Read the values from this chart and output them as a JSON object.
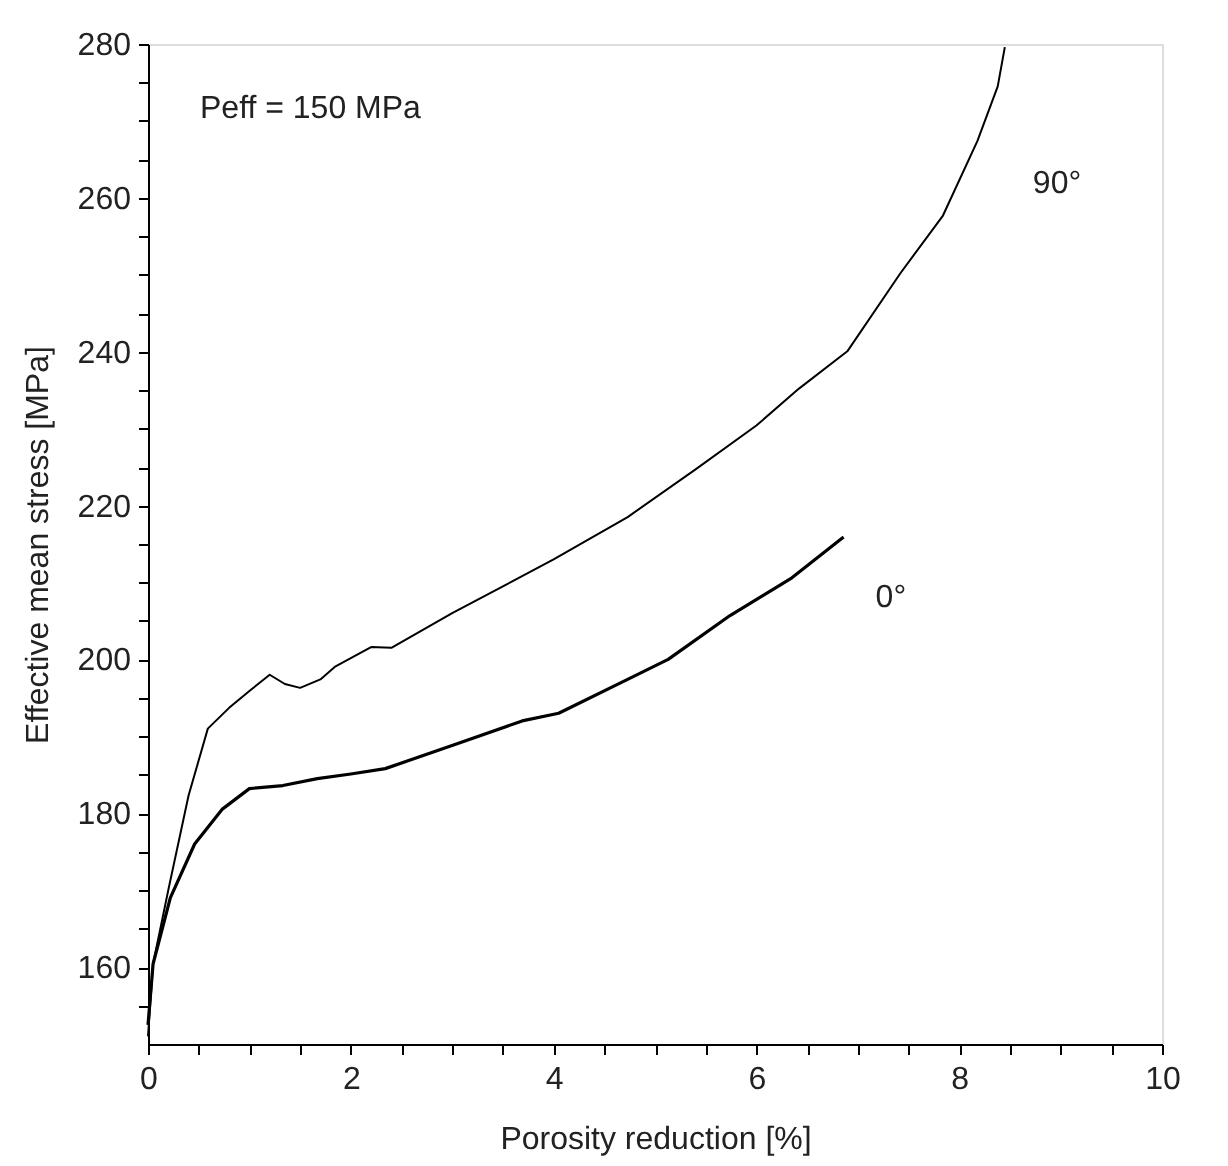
{
  "chart_data": {
    "type": "line",
    "xlabel": "Porosity reduction [%]",
    "ylabel": "Effective mean stress [MPa]",
    "annotations": [
      "Peff = 150 MPa"
    ],
    "xlim": [
      0,
      10
    ],
    "ylim": [
      150,
      280
    ],
    "xticks": [
      0,
      {
        "value": 0.5,
        "label": null
      },
      {
        "value": 1,
        "label": null
      },
      {
        "value": 1.5,
        "label": null
      },
      2,
      {
        "value": 2.5,
        "label": null
      },
      {
        "value": 3,
        "label": null
      },
      {
        "value": 3.5,
        "label": null
      },
      4,
      {
        "value": 4.5,
        "label": null
      },
      {
        "value": 5,
        "label": null
      },
      {
        "value": 5.5,
        "label": null
      },
      6,
      {
        "value": 6.5,
        "label": null
      },
      {
        "value": 7,
        "label": null
      },
      {
        "value": 7.5,
        "label": null
      },
      8,
      {
        "value": 8.5,
        "label": null
      },
      {
        "value": 9,
        "label": null
      },
      {
        "value": 9.5,
        "label": null
      },
      10
    ],
    "yticks": [
      {
        "value": 155,
        "label": null
      },
      160,
      {
        "value": 165,
        "label": null
      },
      {
        "value": 170,
        "label": null
      },
      {
        "value": 175,
        "label": null
      },
      180,
      {
        "value": 185,
        "label": null
      },
      {
        "value": 190,
        "label": null
      },
      {
        "value": 195,
        "label": null
      },
      200,
      {
        "value": 205,
        "label": null
      },
      {
        "value": 210,
        "label": null
      },
      {
        "value": 215,
        "label": null
      },
      220,
      {
        "value": 225,
        "label": null
      },
      {
        "value": 230,
        "label": null
      },
      {
        "value": 235,
        "label": null
      },
      240,
      {
        "value": 245,
        "label": null
      },
      {
        "value": 250,
        "label": null
      },
      {
        "value": 255,
        "label": null
      },
      260,
      {
        "value": 265,
        "label": null
      },
      {
        "value": 270,
        "label": null
      },
      {
        "value": 275,
        "label": null
      },
      280
    ],
    "grid": false,
    "marker": "none",
    "line_style": "solid",
    "series": [
      {
        "name": "90°",
        "color": "#000000",
        "x": [
          0,
          0.05,
          0.2,
          0.4,
          0.59,
          0.8,
          1.0,
          1.2,
          1.35,
          1.5,
          1.7,
          1.85,
          2.2,
          2.4,
          3.0,
          4.0,
          4.73,
          5.4,
          6.0,
          6.42,
          6.9,
          7.42,
          7.84,
          8.18,
          8.38,
          8.45
        ],
        "values": [
          151,
          160.4,
          170,
          182.3,
          191,
          193.7,
          195.9,
          198,
          196.8,
          196.3,
          197.4,
          199.1,
          201.6,
          201.5,
          206,
          213,
          218.5,
          224.7,
          230.4,
          235.2,
          240.1,
          250.2,
          257.7,
          267.4,
          274.5,
          279.6
        ]
      },
      {
        "name": "0°",
        "color": "#000000",
        "x": [
          0,
          0.05,
          0.22,
          0.46,
          0.73,
          1.0,
          1.33,
          1.67,
          2.0,
          2.34,
          3.02,
          3.69,
          4.05,
          4.73,
          5.13,
          5.74,
          6.35,
          6.86
        ],
        "values": [
          152.5,
          160.4,
          169,
          176,
          180.5,
          183.2,
          183.6,
          184.5,
          185.1,
          185.8,
          188.9,
          192,
          193,
          197.4,
          200,
          205.7,
          210.6,
          215.9
        ]
      }
    ]
  }
}
